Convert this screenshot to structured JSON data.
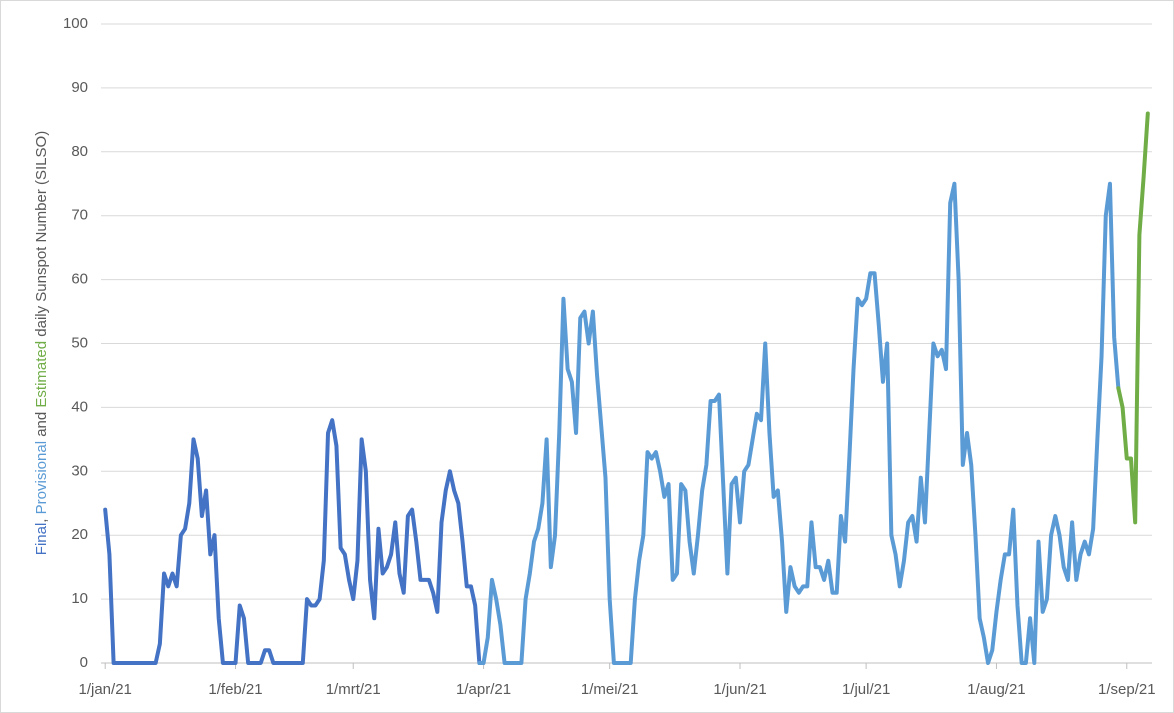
{
  "chart_data": {
    "type": "line",
    "y_label": {
      "connectors": [
        ", ",
        " and ",
        " daily Sunspot Number (SILSO)"
      ]
    },
    "xlim": [
      -1,
      249
    ],
    "xticks": [
      {
        "value": 0,
        "label": "1/jan/21"
      },
      {
        "value": 31,
        "label": "1/feb/21"
      },
      {
        "value": 59,
        "label": "1/mrt/21"
      },
      {
        "value": 90,
        "label": "1/apr/21"
      },
      {
        "value": 120,
        "label": "1/mei/21"
      },
      {
        "value": 151,
        "label": "1/jun/21"
      },
      {
        "value": 181,
        "label": "1/jul/21"
      },
      {
        "value": 212,
        "label": "1/aug/21"
      },
      {
        "value": 243,
        "label": "1/sep/21"
      }
    ],
    "ylim": [
      0,
      100
    ],
    "yticks": [
      0,
      10,
      20,
      30,
      40,
      50,
      60,
      70,
      80,
      90,
      100
    ],
    "grid": true,
    "series": [
      {
        "name": "Final",
        "color": "#4472c4",
        "x": [
          0,
          1,
          2,
          3,
          4,
          5,
          6,
          7,
          8,
          9,
          10,
          11,
          12,
          13,
          14,
          15,
          16,
          17,
          18,
          19,
          20,
          21,
          22,
          23,
          24,
          25,
          26,
          27,
          28,
          29,
          30,
          31,
          32,
          33,
          34,
          35,
          36,
          37,
          38,
          39,
          40,
          41,
          42,
          43,
          44,
          45,
          46,
          47,
          48,
          49,
          50,
          51,
          52,
          53,
          54,
          55,
          56,
          57,
          58,
          59,
          60,
          61,
          62,
          63,
          64,
          65,
          66,
          67,
          68,
          69,
          70,
          71,
          72,
          73,
          74,
          75,
          76,
          77,
          78,
          79,
          80,
          81,
          82,
          83,
          84,
          85,
          86,
          87,
          88,
          89
        ],
        "values": [
          24,
          17,
          0,
          0,
          0,
          0,
          0,
          0,
          0,
          0,
          0,
          0,
          0,
          3,
          14,
          12,
          14,
          12,
          20,
          21,
          25,
          35,
          32,
          23,
          27,
          17,
          20,
          7,
          0,
          0,
          0,
          0,
          9,
          7,
          0,
          0,
          0,
          0,
          2,
          2,
          0,
          0,
          0,
          0,
          0,
          0,
          0,
          0,
          10,
          9,
          9,
          10,
          16,
          36,
          38,
          34,
          18,
          17,
          13,
          10,
          16,
          35,
          30,
          13,
          7,
          21,
          14,
          15,
          17,
          22,
          14,
          11,
          23,
          24,
          19,
          13,
          13,
          13,
          11,
          8,
          22,
          27,
          30,
          27,
          25,
          19,
          12,
          12,
          9,
          0
        ]
      },
      {
        "name": "Provisional",
        "color": "#5b9bd5",
        "x": [
          89,
          90,
          91,
          92,
          93,
          94,
          95,
          96,
          97,
          98,
          99,
          100,
          101,
          102,
          103,
          104,
          105,
          106,
          107,
          108,
          109,
          110,
          111,
          112,
          113,
          114,
          115,
          116,
          117,
          118,
          119,
          120,
          121,
          122,
          123,
          124,
          125,
          126,
          127,
          128,
          129,
          130,
          131,
          132,
          133,
          134,
          135,
          136,
          137,
          138,
          139,
          140,
          141,
          142,
          143,
          144,
          145,
          146,
          147,
          148,
          149,
          150,
          151,
          152,
          153,
          154,
          155,
          156,
          157,
          158,
          159,
          160,
          161,
          162,
          163,
          164,
          165,
          166,
          167,
          168,
          169,
          170,
          171,
          172,
          173,
          174,
          175,
          176,
          177,
          178,
          179,
          180,
          181,
          182,
          183,
          184,
          185,
          186,
          187,
          188,
          189,
          190,
          191,
          192,
          193,
          194,
          195,
          196,
          197,
          198,
          199,
          200,
          201,
          202,
          203,
          204,
          205,
          206,
          207,
          208,
          209,
          210,
          211,
          212,
          213,
          214,
          215,
          216,
          217,
          218,
          219,
          220,
          221,
          222,
          223,
          224,
          225,
          226,
          227,
          228,
          229,
          230,
          231,
          232,
          233,
          234,
          235,
          236,
          237,
          238,
          239,
          240,
          241
        ],
        "values": [
          0,
          0,
          4,
          13,
          10,
          6,
          0,
          0,
          0,
          0,
          0,
          10,
          14,
          19,
          21,
          25,
          35,
          15,
          20,
          36,
          57,
          46,
          44,
          36,
          54,
          55,
          50,
          55,
          45,
          37,
          29,
          10,
          0,
          0,
          0,
          0,
          0,
          10,
          16,
          20,
          33,
          32,
          33,
          30,
          26,
          28,
          13,
          14,
          28,
          27,
          19,
          14,
          20,
          27,
          31,
          41,
          41,
          42,
          28,
          14,
          28,
          29,
          22,
          30,
          31,
          35,
          39,
          38,
          50,
          36,
          26,
          27,
          19,
          8,
          15,
          12,
          11,
          12,
          12,
          22,
          15,
          15,
          13,
          16,
          11,
          11,
          23,
          19,
          32,
          46,
          57,
          56,
          57,
          61,
          61,
          53,
          44,
          50,
          20,
          17,
          12,
          16,
          22,
          23,
          19,
          29,
          22,
          36,
          50,
          48,
          49,
          46,
          72,
          75,
          60,
          31,
          36,
          31,
          20,
          7,
          4,
          0,
          2,
          8,
          13,
          17,
          17,
          24,
          9,
          0,
          0,
          7,
          0,
          19,
          8,
          10,
          20,
          23,
          20,
          15,
          13,
          22,
          13,
          17,
          19,
          17,
          21,
          35,
          48,
          70,
          75,
          51,
          43
        ]
      },
      {
        "name": "Estimated",
        "color": "#70ad47",
        "x": [
          241,
          242,
          243,
          244,
          245,
          246,
          247,
          248
        ],
        "values": [
          43,
          40,
          32,
          32,
          22,
          67,
          76,
          86
        ]
      }
    ]
  }
}
